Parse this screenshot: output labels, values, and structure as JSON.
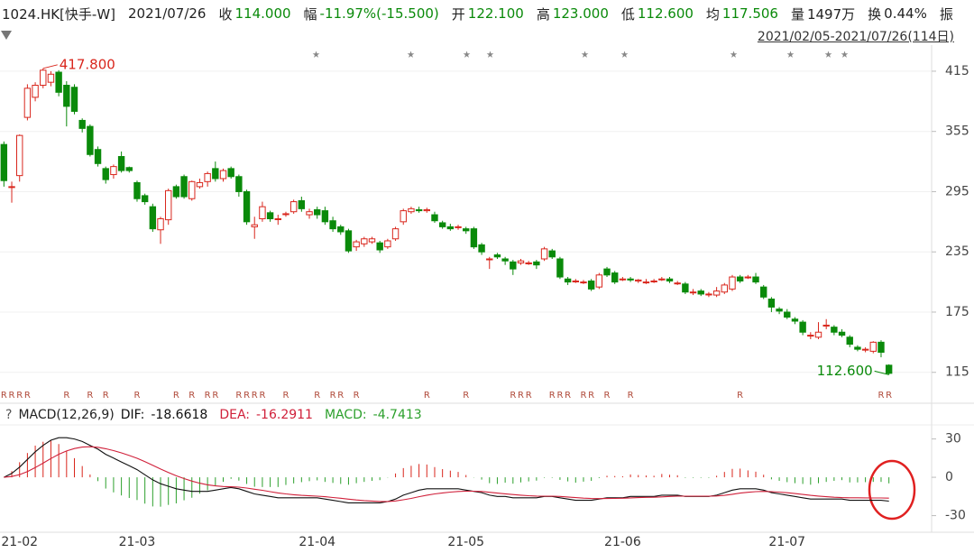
{
  "header": {
    "symbol": "1024.HK[快手-W]",
    "date": "2021/07/26",
    "items": [
      {
        "label": "收",
        "value": "114.000",
        "color": "#0a8a0a"
      },
      {
        "label": "幅",
        "value": "-11.97%(-15.500)",
        "color": "#0a8a0a"
      },
      {
        "label": "开",
        "value": "122.100",
        "color": "#0a8a0a"
      },
      {
        "label": "高",
        "value": "123.000",
        "color": "#0a8a0a"
      },
      {
        "label": "低",
        "value": "112.600",
        "color": "#0a8a0a"
      },
      {
        "label": "均",
        "value": "117.506",
        "color": "#0a8a0a"
      },
      {
        "label": "量",
        "value": "1497万",
        "color": "#222222"
      },
      {
        "label": "换",
        "value": "0.44%",
        "color": "#222222"
      },
      {
        "label": "振"
      }
    ],
    "range": "2021/02/05-2021/07/26(114日)"
  },
  "chart_data": [
    {
      "type": "candlestick",
      "categories": [
        null,
        null,
        "21-02",
        null,
        null,
        null,
        null,
        null,
        null,
        null,
        null,
        null,
        null,
        null,
        null,
        null,
        null,
        "21-03",
        null,
        null,
        null,
        null,
        null,
        null,
        null,
        null,
        null,
        null,
        null,
        null,
        null,
        null,
        null,
        null,
        null,
        null,
        null,
        null,
        null,
        null,
        "21-04",
        null,
        null,
        null,
        null,
        null,
        null,
        null,
        null,
        null,
        null,
        null,
        null,
        null,
        null,
        null,
        null,
        null,
        null,
        "21-05",
        null,
        null,
        null,
        null,
        null,
        null,
        null,
        null,
        null,
        null,
        null,
        null,
        null,
        null,
        null,
        null,
        null,
        null,
        null,
        "21-06",
        null,
        null,
        null,
        null,
        null,
        null,
        null,
        null,
        null,
        null,
        null,
        null,
        null,
        null,
        null,
        null,
        null,
        null,
        null,
        null,
        "21-07",
        null,
        null,
        null,
        null,
        null,
        null,
        null,
        null,
        null,
        null,
        null,
        null,
        null
      ],
      "open": [
        342,
        300,
        311,
        369,
        389,
        401,
        404,
        414,
        401,
        399,
        366,
        360,
        337,
        318,
        312,
        330,
        319,
        304,
        291,
        280,
        257,
        267,
        300,
        310,
        288,
        300,
        305,
        318,
        308,
        318,
        310,
        295,
        260,
        268,
        274,
        268,
        273,
        275,
        286,
        272,
        277,
        276,
        266,
        260,
        256,
        240,
        243,
        245,
        244,
        240,
        248,
        265,
        275,
        277,
        276,
        272,
        264,
        260,
        260,
        258,
        258,
        242,
        228,
        232,
        228,
        225,
        224,
        224,
        225,
        228,
        236,
        228,
        208,
        206,
        205,
        206,
        200,
        218,
        214,
        208,
        208,
        206,
        205,
        206,
        208,
        208,
        204,
        203,
        195,
        196,
        193,
        192,
        195,
        198,
        210,
        210,
        210,
        200,
        188,
        178,
        175,
        168,
        165,
        152,
        150,
        162,
        160,
        155,
        150,
        140,
        138,
        136,
        145,
        122.1
      ],
      "high": [
        345,
        305,
        352,
        402,
        404,
        417.8,
        415,
        416,
        405,
        402,
        368,
        362,
        340,
        320,
        322,
        335,
        320,
        306,
        293,
        283,
        270,
        298,
        302,
        312,
        306,
        308,
        315,
        325,
        318,
        320,
        312,
        297,
        270,
        285,
        276,
        272,
        275,
        287,
        290,
        278,
        280,
        280,
        270,
        262,
        258,
        247,
        250,
        250,
        246,
        248,
        260,
        278,
        280,
        280,
        279,
        275,
        266,
        263,
        262,
        260,
        260,
        244,
        230,
        234,
        230,
        227,
        228,
        226,
        227,
        240,
        238,
        230,
        210,
        208,
        207,
        208,
        214,
        220,
        216,
        210,
        210,
        208,
        208,
        208,
        210,
        210,
        206,
        205,
        198,
        198,
        195,
        200,
        204,
        212,
        212,
        212,
        214,
        202,
        190,
        180,
        178,
        170,
        167,
        155,
        165,
        168,
        162,
        158,
        152,
        142,
        140,
        146,
        147,
        123
      ],
      "low": [
        300,
        284,
        305,
        366,
        385,
        398,
        400,
        390,
        360,
        372,
        354,
        330,
        320,
        303,
        308,
        314,
        314,
        285,
        282,
        255,
        243,
        262,
        288,
        288,
        286,
        298,
        300,
        305,
        305,
        308,
        290,
        262,
        248,
        265,
        265,
        262,
        270,
        273,
        275,
        268,
        268,
        262,
        255,
        252,
        234,
        236,
        240,
        243,
        234,
        238,
        246,
        262,
        273,
        274,
        274,
        264,
        258,
        256,
        257,
        253,
        238,
        232,
        218,
        228,
        222,
        212,
        222,
        222,
        218,
        226,
        228,
        208,
        202,
        204,
        203,
        196,
        198,
        210,
        203,
        206,
        205,
        204,
        203,
        204,
        206,
        204,
        202,
        193,
        192,
        191,
        190,
        190,
        193,
        196,
        204,
        208,
        203,
        188,
        175,
        173,
        168,
        163,
        152,
        148,
        148,
        158,
        152,
        150,
        140,
        136,
        135,
        134,
        130,
        112.6
      ],
      "close": [
        306,
        300,
        351,
        398,
        401,
        416,
        412,
        394,
        380,
        375,
        358,
        332,
        323,
        307,
        320,
        316,
        316,
        288,
        285,
        258,
        268,
        296,
        290,
        290,
        305,
        304,
        313,
        308,
        316,
        310,
        295,
        265,
        262,
        280,
        268,
        268,
        273,
        285,
        278,
        275,
        272,
        265,
        258,
        255,
        236,
        245,
        248,
        248,
        237,
        246,
        258,
        276,
        278,
        276,
        277,
        266,
        260,
        258,
        260,
        256,
        240,
        235,
        228,
        230,
        226,
        218,
        226,
        224,
        222,
        238,
        230,
        210,
        205,
        206,
        205,
        198,
        212,
        212,
        205,
        208,
        207,
        207,
        205,
        206,
        208,
        206,
        204,
        195,
        195,
        193,
        193,
        196,
        202,
        210,
        206,
        210,
        205,
        190,
        180,
        176,
        170,
        166,
        155,
        152,
        155,
        162,
        155,
        152,
        143,
        138,
        138,
        145,
        135,
        114
      ],
      "up_color": "#d9261c",
      "down_color": "#0a8a0a",
      "ylim": [
        86,
        441
      ],
      "yticks": [
        115,
        175,
        235,
        295,
        355,
        415
      ],
      "grid": true,
      "annotations": [
        {
          "label": "417.800",
          "value": 417.8,
          "index": 5,
          "color": "#d9261c"
        },
        {
          "label": "112.600",
          "value": 112.6,
          "index": 113,
          "color": "#0a8a0a"
        }
      ],
      "r_flags": [
        "R",
        "R",
        "R",
        "R",
        null,
        null,
        null,
        null,
        "R",
        null,
        null,
        "R",
        null,
        "R",
        null,
        null,
        null,
        "R",
        null,
        null,
        null,
        null,
        "R",
        null,
        "R",
        null,
        "R",
        "R",
        null,
        null,
        "R",
        "R",
        "R",
        "R",
        null,
        null,
        "R",
        null,
        null,
        null,
        "R",
        null,
        "R",
        "R",
        null,
        "R",
        null,
        null,
        null,
        null,
        null,
        null,
        null,
        null,
        "R",
        null,
        null,
        null,
        null,
        "R",
        null,
        null,
        null,
        null,
        null,
        "R",
        "R",
        "R",
        null,
        null,
        "R",
        "R",
        "R",
        null,
        "R",
        "R",
        null,
        "R",
        null,
        null,
        "R",
        null,
        null,
        null,
        null,
        null,
        null,
        null,
        null,
        null,
        null,
        null,
        null,
        null,
        "R",
        null,
        null,
        null,
        null,
        null,
        null,
        null,
        null,
        null,
        null,
        null,
        null,
        null,
        null,
        null,
        null,
        null,
        "R",
        "R"
      ]
    },
    {
      "type": "macd",
      "help": "?",
      "title": "MACD(12,26,9)",
      "ylim": [
        -43,
        41
      ],
      "yticks": [
        30,
        0,
        -30
      ],
      "up_color": "#d9261c",
      "down_color": "#2ca02c",
      "series": [
        {
          "name": "DIF:",
          "color": "#111111",
          "kind": "line",
          "values": [
            0,
            3,
            8,
            14,
            20,
            25,
            29,
            31,
            31,
            30,
            28,
            25,
            22,
            18,
            15,
            12,
            9,
            6,
            2,
            -2,
            -5,
            -7,
            -9,
            -10,
            -11,
            -11,
            -11,
            -10,
            -9,
            -8,
            -9,
            -11,
            -13,
            -14,
            -15,
            -16,
            -16,
            -16,
            -16,
            -16,
            -16,
            -17,
            -18,
            -19,
            -20,
            -20,
            -20,
            -20,
            -20,
            -19,
            -17,
            -14,
            -12,
            -10,
            -9,
            -9,
            -9,
            -9,
            -9,
            -10,
            -11,
            -12,
            -14,
            -15,
            -15,
            -16,
            -16,
            -16,
            -16,
            -15,
            -15,
            -16,
            -17,
            -18,
            -18,
            -18,
            -17,
            -16,
            -16,
            -16,
            -15,
            -15,
            -15,
            -15,
            -14,
            -14,
            -14,
            -15,
            -15,
            -15,
            -15,
            -14,
            -12,
            -10,
            -9,
            -9,
            -9,
            -10,
            -12,
            -13,
            -14,
            -15,
            -16,
            -17,
            -17,
            -17,
            -17,
            -17,
            -18,
            -18,
            -18,
            -18,
            -18,
            -18.6618
          ]
        },
        {
          "name": "DEA:",
          "color": "#d0203a",
          "kind": "line",
          "values": [
            0,
            0.6,
            2.1,
            4.5,
            7.6,
            11.1,
            14.7,
            18.0,
            20.6,
            22.5,
            23.6,
            23.9,
            23.5,
            22.4,
            20.9,
            19.1,
            17.1,
            14.9,
            12.3,
            9.4,
            6.5,
            3.8,
            1.2,
            -1.0,
            -3.0,
            -4.6,
            -5.9,
            -6.7,
            -7.2,
            -7.4,
            -7.7,
            -8.4,
            -9.3,
            -10.2,
            -11.2,
            -12.2,
            -13.0,
            -13.6,
            -14.1,
            -14.5,
            -14.8,
            -15.2,
            -15.8,
            -16.4,
            -17.1,
            -17.7,
            -18.2,
            -18.6,
            -18.9,
            -18.9,
            -18.5,
            -17.6,
            -16.5,
            -15.2,
            -14.0,
            -13.0,
            -12.2,
            -11.6,
            -11.1,
            -10.9,
            -10.9,
            -11.1,
            -11.7,
            -12.4,
            -12.9,
            -13.5,
            -14.0,
            -14.4,
            -14.7,
            -14.8,
            -14.8,
            -15.0,
            -15.4,
            -15.9,
            -16.3,
            -16.6,
            -16.7,
            -16.6,
            -16.5,
            -16.4,
            -16.1,
            -15.9,
            -15.7,
            -15.6,
            -15.3,
            -15.0,
            -14.8,
            -14.8,
            -14.8,
            -14.8,
            -14.8,
            -14.6,
            -14.1,
            -13.3,
            -12.4,
            -11.7,
            -11.2,
            -11.0,
            -11.2,
            -11.6,
            -12.1,
            -12.7,
            -13.4,
            -14.1,
            -14.7,
            -15.2,
            -15.6,
            -15.9,
            -16.0,
            -16.0,
            -16.1,
            -16.2,
            -16.2,
            -16.2911
          ]
        },
        {
          "name": "MACD:",
          "color": "#2ca02c",
          "kind": "bar",
          "values": [
            0,
            4.8,
            11.8,
            19,
            24.8,
            27.8,
            28.6,
            26,
            20.8,
            15,
            8.8,
            2.2,
            -3,
            -8.8,
            -11.8,
            -14.2,
            -16.2,
            -17.8,
            -20.6,
            -22.8,
            -23,
            -21.6,
            -20.4,
            -18,
            -16,
            -12.8,
            -10.2,
            -6.6,
            -3.6,
            -1.2,
            -2.6,
            -5.2,
            -7.4,
            -7.6,
            -7.6,
            -7.6,
            -6,
            -4.8,
            -3.8,
            -3,
            -2.4,
            -3.6,
            -4.4,
            -5.2,
            -5.8,
            -4.6,
            -3.6,
            -2.8,
            -2.2,
            -0.2,
            3,
            7.2,
            9,
            10.4,
            10,
            8,
            6.4,
            5.2,
            4.2,
            1.8,
            -0.2,
            -1.8,
            -4.6,
            -5.2,
            -4.2,
            -5,
            -4,
            -3.2,
            -2.6,
            -0.4,
            -0.4,
            -2,
            -3.2,
            -4.2,
            -3.4,
            -2.8,
            -0.6,
            1.2,
            1,
            0.8,
            2.2,
            1.8,
            1.4,
            1.2,
            2.6,
            2,
            1.6,
            -0.4,
            -0.4,
            -0.4,
            -0.4,
            1.2,
            4.2,
            6.6,
            6.8,
            5.4,
            4.4,
            2,
            -1.6,
            -2.8,
            -3.8,
            -4.6,
            -5.2,
            -5.8,
            -4.6,
            -3.6,
            -2.8,
            -2.2,
            -4,
            -4,
            -3.8,
            -3.6,
            -3.6,
            -4.7413
          ]
        }
      ]
    }
  ]
}
